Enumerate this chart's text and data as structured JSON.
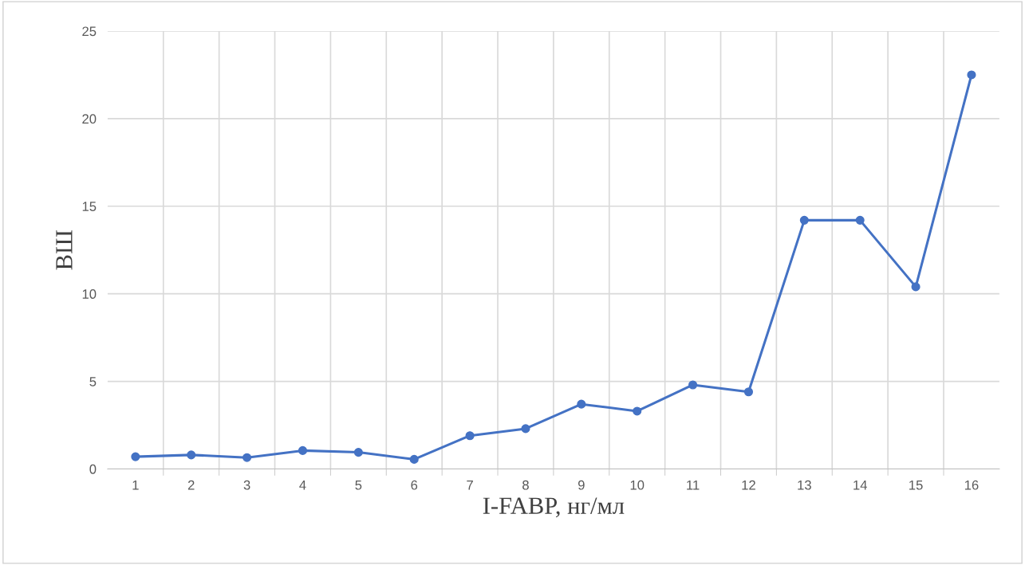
{
  "chart_data": {
    "type": "line",
    "xlabel": "I-FABP, нг/мл",
    "ylabel": "ВШ",
    "categories": [
      "1",
      "2",
      "3",
      "4",
      "5",
      "6",
      "7",
      "8",
      "9",
      "10",
      "11",
      "12",
      "13",
      "14",
      "15",
      "16"
    ],
    "series": [
      {
        "color": "#4472c4",
        "values": [
          0.7,
          0.8,
          0.65,
          1.05,
          0.95,
          0.55,
          1.9,
          2.3,
          3.7,
          3.3,
          4.8,
          4.4,
          14.2,
          14.2,
          10.4,
          22.5
        ]
      }
    ],
    "ylim": [
      0,
      25
    ],
    "yticks": [
      0,
      5,
      10,
      15,
      20,
      25
    ],
    "grid": true,
    "marker": "circle",
    "line_style": "solid",
    "legend": false
  }
}
